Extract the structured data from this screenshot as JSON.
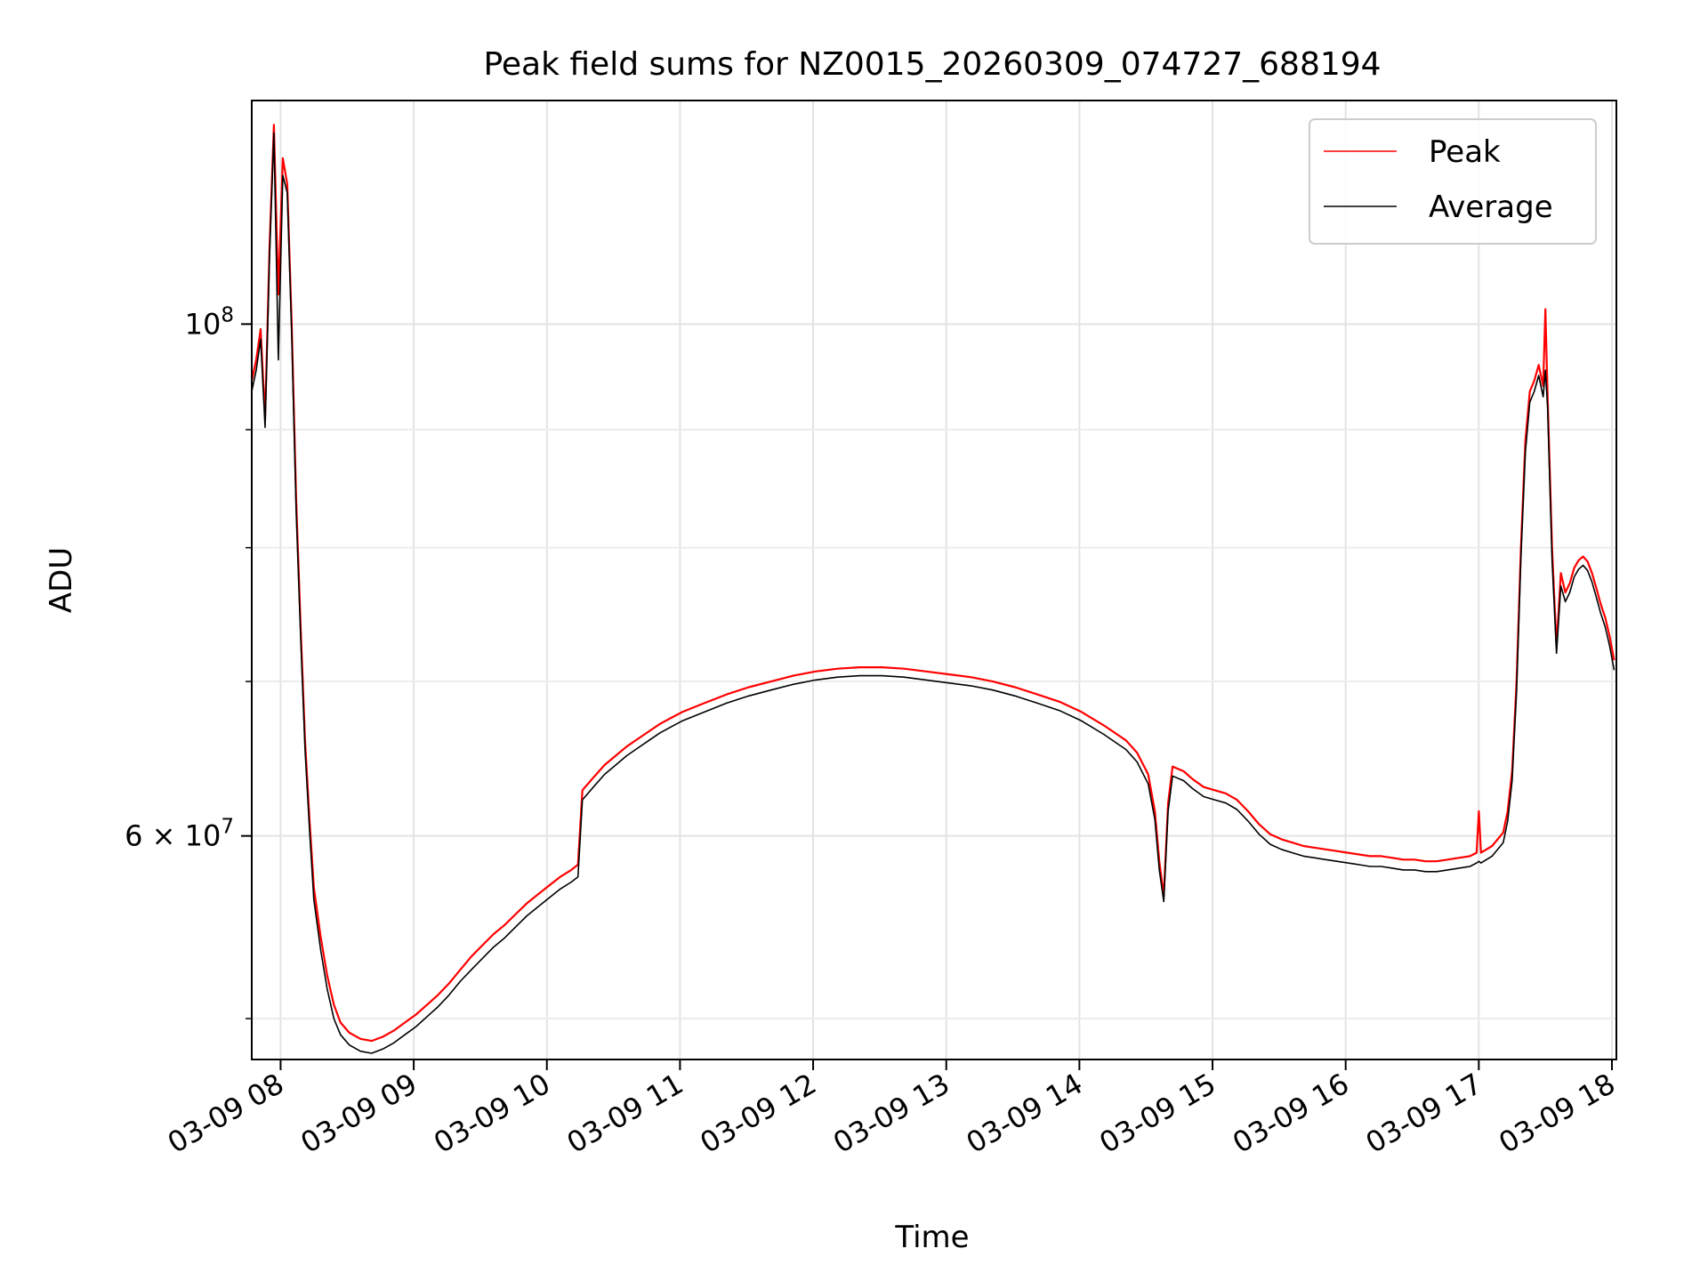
{
  "chart_data": {
    "type": "line",
    "title": "Peak field sums for NZ0015_20260309_074727_688194",
    "xlabel": "Time",
    "ylabel": "ADU",
    "x_ticks": [
      "03-09 08",
      "03-09 09",
      "03-09 10",
      "03-09 11",
      "03-09 12",
      "03-09 13",
      "03-09 14",
      "03-09 15",
      "03-09 16",
      "03-09 17",
      "03-09 18"
    ],
    "y_ticks": [
      {
        "value": 100000000,
        "base": "10",
        "exp": "8"
      },
      {
        "value": 60000000,
        "base": "6 × 10",
        "exp": "7"
      }
    ],
    "y_minor_ticks": [
      50000000,
      70000000,
      80000000,
      90000000
    ],
    "y_scale": "log",
    "ylim": [
      48000000,
      125000000
    ],
    "xlim": [
      "2026-03-09 07:47",
      "2026-03-09 18:02"
    ],
    "grid": true,
    "legend_position": "top-right",
    "series": [
      {
        "name": "Peak",
        "color": "#ff0000",
        "points": [
          [
            "07:47",
            94.5
          ],
          [
            "07:49",
            96.5
          ],
          [
            "07:51",
            99.5
          ],
          [
            "07:53",
            91
          ],
          [
            "07:55",
            108
          ],
          [
            "07:57",
            122
          ],
          [
            "07:59",
            103
          ],
          [
            "08:01",
            118
          ],
          [
            "08:03",
            115
          ],
          [
            "08:05",
            100
          ],
          [
            "08:07",
            84
          ],
          [
            "08:09",
            74
          ],
          [
            "08:11",
            66
          ],
          [
            "08:13",
            61
          ],
          [
            "08:15",
            57
          ],
          [
            "08:18",
            54.3
          ],
          [
            "08:21",
            52.2
          ],
          [
            "08:24",
            50.7
          ],
          [
            "08:27",
            49.8
          ],
          [
            "08:31",
            49.3
          ],
          [
            "08:36",
            49.0
          ],
          [
            "08:41",
            48.9
          ],
          [
            "08:46",
            49.1
          ],
          [
            "08:51",
            49.4
          ],
          [
            "08:56",
            49.8
          ],
          [
            "09:01",
            50.2
          ],
          [
            "09:06",
            50.7
          ],
          [
            "09:11",
            51.2
          ],
          [
            "09:16",
            51.8
          ],
          [
            "09:21",
            52.5
          ],
          [
            "09:26",
            53.2
          ],
          [
            "09:31",
            53.8
          ],
          [
            "09:36",
            54.4
          ],
          [
            "09:41",
            54.9
          ],
          [
            "09:46",
            55.5
          ],
          [
            "09:51",
            56.1
          ],
          [
            "09:56",
            56.6
          ],
          [
            "10:01",
            57.1
          ],
          [
            "10:06",
            57.6
          ],
          [
            "10:11",
            58.0
          ],
          [
            "10:14",
            58.3
          ],
          [
            "10:16",
            62.8
          ],
          [
            "10:21",
            63.6
          ],
          [
            "10:26",
            64.4
          ],
          [
            "10:31",
            65.0
          ],
          [
            "10:36",
            65.6
          ],
          [
            "10:41",
            66.1
          ],
          [
            "10:46",
            66.6
          ],
          [
            "10:51",
            67.1
          ],
          [
            "10:56",
            67.5
          ],
          [
            "11:01",
            67.9
          ],
          [
            "11:11",
            68.5
          ],
          [
            "11:21",
            69.1
          ],
          [
            "11:31",
            69.6
          ],
          [
            "11:41",
            70.0
          ],
          [
            "11:51",
            70.4
          ],
          [
            "12:01",
            70.7
          ],
          [
            "12:11",
            70.9
          ],
          [
            "12:21",
            71.0
          ],
          [
            "12:31",
            71.0
          ],
          [
            "12:41",
            70.9
          ],
          [
            "12:51",
            70.7
          ],
          [
            "13:01",
            70.5
          ],
          [
            "13:11",
            70.3
          ],
          [
            "13:21",
            70.0
          ],
          [
            "13:31",
            69.6
          ],
          [
            "13:41",
            69.1
          ],
          [
            "13:51",
            68.6
          ],
          [
            "14:01",
            67.9
          ],
          [
            "14:11",
            67.0
          ],
          [
            "14:21",
            66.0
          ],
          [
            "14:26",
            65.2
          ],
          [
            "14:31",
            63.8
          ],
          [
            "14:34",
            61.5
          ],
          [
            "14:36",
            58.5
          ],
          [
            "14:38",
            56.5
          ],
          [
            "14:40",
            62.0
          ],
          [
            "14:42",
            64.3
          ],
          [
            "14:47",
            64.0
          ],
          [
            "14:51",
            63.5
          ],
          [
            "14:56",
            63.0
          ],
          [
            "15:01",
            62.8
          ],
          [
            "15:06",
            62.6
          ],
          [
            "15:11",
            62.2
          ],
          [
            "15:16",
            61.5
          ],
          [
            "15:21",
            60.7
          ],
          [
            "15:26",
            60.1
          ],
          [
            "15:31",
            59.8
          ],
          [
            "15:36",
            59.6
          ],
          [
            "15:41",
            59.4
          ],
          [
            "15:46",
            59.3
          ],
          [
            "15:51",
            59.2
          ],
          [
            "15:56",
            59.1
          ],
          [
            "16:01",
            59.0
          ],
          [
            "16:06",
            58.9
          ],
          [
            "16:11",
            58.8
          ],
          [
            "16:16",
            58.8
          ],
          [
            "16:21",
            58.7
          ],
          [
            "16:26",
            58.6
          ],
          [
            "16:31",
            58.6
          ],
          [
            "16:36",
            58.5
          ],
          [
            "16:41",
            58.5
          ],
          [
            "16:46",
            58.6
          ],
          [
            "16:51",
            58.7
          ],
          [
            "16:56",
            58.8
          ],
          [
            "16:59",
            59.0
          ],
          [
            "17:00",
            61.5
          ],
          [
            "17:01",
            59.0
          ],
          [
            "17:06",
            59.4
          ],
          [
            "17:11",
            60.2
          ],
          [
            "17:13",
            61.5
          ],
          [
            "17:15",
            64.0
          ],
          [
            "17:17",
            70.0
          ],
          [
            "17:19",
            80.0
          ],
          [
            "17:21",
            89.0
          ],
          [
            "17:23",
            93.5
          ],
          [
            "17:25",
            94.5
          ],
          [
            "17:27",
            96.0
          ],
          [
            "17:29",
            94.0
          ],
          [
            "17:30",
            101.5
          ],
          [
            "17:31",
            93.0
          ],
          [
            "17:33",
            80.0
          ],
          [
            "17:35",
            72.5
          ],
          [
            "17:37",
            78.0
          ],
          [
            "17:39",
            76.5
          ],
          [
            "17:41",
            77.2
          ],
          [
            "17:43",
            78.4
          ],
          [
            "17:45",
            79.0
          ],
          [
            "17:47",
            79.3
          ],
          [
            "17:49",
            78.9
          ],
          [
            "17:51",
            78.0
          ],
          [
            "17:53",
            76.8
          ],
          [
            "17:55",
            75.6
          ],
          [
            "17:57",
            74.6
          ],
          [
            "17:59",
            73.2
          ],
          [
            "18:01",
            71.5
          ]
        ]
      },
      {
        "name": "Average",
        "color": "#000000",
        "points": [
          [
            "07:47",
            93.5
          ],
          [
            "07:49",
            95.5
          ],
          [
            "07:51",
            98.5
          ],
          [
            "07:53",
            90.2
          ],
          [
            "07:55",
            107
          ],
          [
            "07:57",
            121
          ],
          [
            "07:59",
            96.5
          ],
          [
            "08:01",
            116
          ],
          [
            "08:03",
            114
          ],
          [
            "08:05",
            99
          ],
          [
            "08:07",
            83
          ],
          [
            "08:09",
            73.3
          ],
          [
            "08:11",
            65.4
          ],
          [
            "08:13",
            60.4
          ],
          [
            "08:15",
            56.3
          ],
          [
            "08:18",
            53.6
          ],
          [
            "08:21",
            51.5
          ],
          [
            "08:24",
            50.0
          ],
          [
            "08:27",
            49.2
          ],
          [
            "08:31",
            48.7
          ],
          [
            "08:36",
            48.4
          ],
          [
            "08:41",
            48.3
          ],
          [
            "08:46",
            48.5
          ],
          [
            "08:51",
            48.8
          ],
          [
            "08:56",
            49.2
          ],
          [
            "09:01",
            49.6
          ],
          [
            "09:06",
            50.1
          ],
          [
            "09:11",
            50.6
          ],
          [
            "09:16",
            51.2
          ],
          [
            "09:21",
            51.9
          ],
          [
            "09:26",
            52.5
          ],
          [
            "09:31",
            53.1
          ],
          [
            "09:36",
            53.7
          ],
          [
            "09:41",
            54.2
          ],
          [
            "09:46",
            54.8
          ],
          [
            "09:51",
            55.4
          ],
          [
            "09:56",
            55.9
          ],
          [
            "10:01",
            56.4
          ],
          [
            "10:06",
            56.9
          ],
          [
            "10:11",
            57.3
          ],
          [
            "10:14",
            57.6
          ],
          [
            "10:16",
            62.2
          ],
          [
            "10:21",
            63.0
          ],
          [
            "10:26",
            63.8
          ],
          [
            "10:31",
            64.4
          ],
          [
            "10:36",
            65.0
          ],
          [
            "10:41",
            65.5
          ],
          [
            "10:46",
            66.0
          ],
          [
            "10:51",
            66.5
          ],
          [
            "10:56",
            66.9
          ],
          [
            "11:01",
            67.3
          ],
          [
            "11:11",
            67.9
          ],
          [
            "11:21",
            68.5
          ],
          [
            "11:31",
            69.0
          ],
          [
            "11:41",
            69.4
          ],
          [
            "11:51",
            69.8
          ],
          [
            "12:01",
            70.1
          ],
          [
            "12:11",
            70.3
          ],
          [
            "12:21",
            70.4
          ],
          [
            "12:31",
            70.4
          ],
          [
            "12:41",
            70.3
          ],
          [
            "12:51",
            70.1
          ],
          [
            "13:01",
            69.9
          ],
          [
            "13:11",
            69.7
          ],
          [
            "13:21",
            69.4
          ],
          [
            "13:31",
            69.0
          ],
          [
            "13:41",
            68.5
          ],
          [
            "13:51",
            68.0
          ],
          [
            "14:01",
            67.3
          ],
          [
            "14:11",
            66.4
          ],
          [
            "14:21",
            65.4
          ],
          [
            "14:26",
            64.6
          ],
          [
            "14:31",
            63.2
          ],
          [
            "14:34",
            61.0
          ],
          [
            "14:36",
            58.0
          ],
          [
            "14:38",
            56.2
          ],
          [
            "14:40",
            61.5
          ],
          [
            "14:42",
            63.7
          ],
          [
            "14:47",
            63.4
          ],
          [
            "14:51",
            62.9
          ],
          [
            "14:56",
            62.4
          ],
          [
            "15:01",
            62.2
          ],
          [
            "15:06",
            62.0
          ],
          [
            "15:11",
            61.6
          ],
          [
            "15:16",
            60.9
          ],
          [
            "15:21",
            60.1
          ],
          [
            "15:26",
            59.5
          ],
          [
            "15:31",
            59.2
          ],
          [
            "15:36",
            59.0
          ],
          [
            "15:41",
            58.8
          ],
          [
            "15:46",
            58.7
          ],
          [
            "15:51",
            58.6
          ],
          [
            "15:56",
            58.5
          ],
          [
            "16:01",
            58.4
          ],
          [
            "16:06",
            58.3
          ],
          [
            "16:11",
            58.2
          ],
          [
            "16:16",
            58.2
          ],
          [
            "16:21",
            58.1
          ],
          [
            "16:26",
            58.0
          ],
          [
            "16:31",
            58.0
          ],
          [
            "16:36",
            57.9
          ],
          [
            "16:41",
            57.9
          ],
          [
            "16:46",
            58.0
          ],
          [
            "16:51",
            58.1
          ],
          [
            "16:56",
            58.2
          ],
          [
            "16:59",
            58.4
          ],
          [
            "17:00",
            58.5
          ],
          [
            "17:01",
            58.4
          ],
          [
            "17:06",
            58.8
          ],
          [
            "17:11",
            59.6
          ],
          [
            "17:13",
            60.9
          ],
          [
            "17:15",
            63.4
          ],
          [
            "17:17",
            69.3
          ],
          [
            "17:19",
            79.2
          ],
          [
            "17:21",
            88.0
          ],
          [
            "17:23",
            92.5
          ],
          [
            "17:25",
            93.5
          ],
          [
            "17:27",
            95.0
          ],
          [
            "17:29",
            93.0
          ],
          [
            "17:30",
            95.5
          ],
          [
            "17:31",
            92.0
          ],
          [
            "17:33",
            79.0
          ],
          [
            "17:35",
            72.0
          ],
          [
            "17:37",
            77.0
          ],
          [
            "17:39",
            75.8
          ],
          [
            "17:41",
            76.5
          ],
          [
            "17:43",
            77.7
          ],
          [
            "17:45",
            78.3
          ],
          [
            "17:47",
            78.6
          ],
          [
            "17:49",
            78.2
          ],
          [
            "17:51",
            77.3
          ],
          [
            "17:53",
            76.1
          ],
          [
            "17:55",
            74.9
          ],
          [
            "17:57",
            73.9
          ],
          [
            "17:59",
            72.5
          ],
          [
            "18:01",
            70.8
          ]
        ]
      }
    ]
  }
}
